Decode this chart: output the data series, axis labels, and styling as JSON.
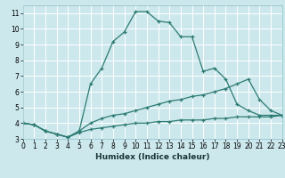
{
  "xlabel": "Humidex (Indice chaleur)",
  "bg_color": "#cce8ed",
  "grid_color": "#ffffff",
  "line_color": "#2d7b72",
  "xlim": [
    0,
    23
  ],
  "ylim": [
    3,
    11.5
  ],
  "xtick_vals": [
    0,
    1,
    2,
    3,
    4,
    5,
    6,
    7,
    8,
    9,
    10,
    11,
    12,
    13,
    14,
    15,
    16,
    17,
    18,
    19,
    20,
    21,
    22,
    23
  ],
  "ytick_vals": [
    3,
    4,
    5,
    6,
    7,
    8,
    9,
    10,
    11
  ],
  "series": [
    {
      "x": [
        0,
        1,
        2,
        3,
        4,
        5,
        6,
        7,
        8,
        9,
        10,
        11,
        12,
        13,
        14,
        15,
        16,
        17,
        18,
        19,
        20,
        21,
        22,
        23
      ],
      "y": [
        4.0,
        3.9,
        3.5,
        3.3,
        3.1,
        3.4,
        3.6,
        3.7,
        3.8,
        3.9,
        4.0,
        4.0,
        4.1,
        4.1,
        4.2,
        4.2,
        4.2,
        4.3,
        4.3,
        4.4,
        4.4,
        4.4,
        4.4,
        4.5
      ]
    },
    {
      "x": [
        0,
        1,
        2,
        3,
        4,
        5,
        6,
        7,
        8,
        9,
        10,
        11,
        12,
        13,
        14,
        15,
        16,
        17,
        18,
        19,
        20,
        21,
        22,
        23
      ],
      "y": [
        4.0,
        3.9,
        3.5,
        3.3,
        3.1,
        3.5,
        4.0,
        4.3,
        4.5,
        4.6,
        4.8,
        5.0,
        5.2,
        5.4,
        5.5,
        5.7,
        5.8,
        6.0,
        6.2,
        6.5,
        6.8,
        5.5,
        4.8,
        4.5
      ]
    },
    {
      "x": [
        0,
        1,
        2,
        3,
        4,
        5,
        6,
        7,
        8,
        9,
        10,
        11,
        12,
        13,
        14,
        15,
        16,
        17,
        18,
        19,
        20,
        21,
        22,
        23
      ],
      "y": [
        4.0,
        3.9,
        3.5,
        3.3,
        3.1,
        3.5,
        6.5,
        7.5,
        9.2,
        9.8,
        11.1,
        11.1,
        10.5,
        10.4,
        9.5,
        9.5,
        7.3,
        7.5,
        6.8,
        5.2,
        4.8,
        4.5,
        4.5,
        4.5
      ]
    }
  ]
}
